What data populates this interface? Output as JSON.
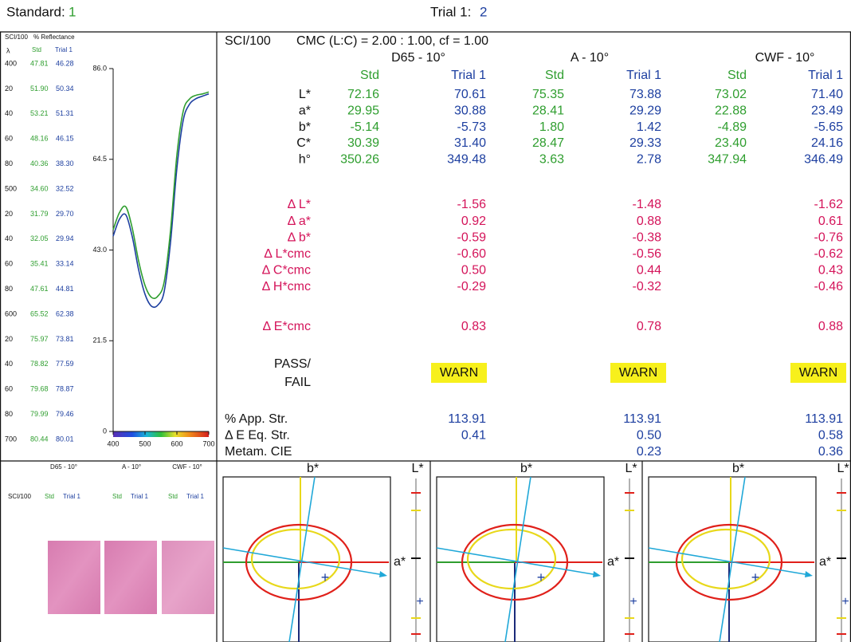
{
  "header": {
    "standard_label": "Standard:",
    "standard_value": "1",
    "trial_label": "Trial 1:",
    "trial_value": "2"
  },
  "spectral": {
    "mode": "SCI/100",
    "title": "% Reflectance",
    "col_headers": [
      "λ",
      "Std",
      "Trial 1"
    ],
    "rows": [
      {
        "wl": {
          "value": 400,
          "label": "400"
        },
        "std": "47.81",
        "trial": "46.28"
      },
      {
        "wl": {
          "value": 420,
          "label": "20"
        },
        "std": "51.90",
        "trial": "50.34"
      },
      {
        "wl": {
          "value": 440,
          "label": "40"
        },
        "std": "53.21",
        "trial": "51.31"
      },
      {
        "wl": {
          "value": 460,
          "label": "60"
        },
        "std": "48.16",
        "trial": "46.15"
      },
      {
        "wl": {
          "value": 480,
          "label": "80"
        },
        "std": "40.36",
        "trial": "38.30"
      },
      {
        "wl": {
          "value": 500,
          "label": "500"
        },
        "std": "34.60",
        "trial": "32.52"
      },
      {
        "wl": {
          "value": 520,
          "label": "20"
        },
        "std": "31.79",
        "trial": "29.70"
      },
      {
        "wl": {
          "value": 540,
          "label": "40"
        },
        "std": "32.05",
        "trial": "29.94"
      },
      {
        "wl": {
          "value": 560,
          "label": "60"
        },
        "std": "35.41",
        "trial": "33.14"
      },
      {
        "wl": {
          "value": 580,
          "label": "80"
        },
        "std": "47.61",
        "trial": "44.81"
      },
      {
        "wl": {
          "value": 600,
          "label": "600"
        },
        "std": "65.52",
        "trial": "62.38"
      },
      {
        "wl": {
          "value": 620,
          "label": "20"
        },
        "std": "75.97",
        "trial": "73.81"
      },
      {
        "wl": {
          "value": 640,
          "label": "40"
        },
        "std": "78.82",
        "trial": "77.59"
      },
      {
        "wl": {
          "value": 660,
          "label": "60"
        },
        "std": "79.68",
        "trial": "78.87"
      },
      {
        "wl": {
          "value": 680,
          "label": "80"
        },
        "std": "79.99",
        "trial": "79.46"
      },
      {
        "wl": {
          "value": 700,
          "label": "700"
        },
        "std": "80.44",
        "trial": "80.01"
      }
    ],
    "chart": {
      "xlim": [
        400,
        700
      ],
      "ylim": [
        0,
        86
      ],
      "xticks": [
        400,
        500,
        600,
        700
      ],
      "yticks": [
        {
          "value": 86,
          "label": "86.0"
        },
        {
          "value": 64.5,
          "label": "64.5"
        },
        {
          "value": 43,
          "label": "43.0"
        },
        {
          "value": 21.5,
          "label": "21.5"
        },
        0
      ],
      "std_color": "#2f9e2f",
      "trial_color": "#1d3fa0"
    }
  },
  "results": {
    "formula": "CMC (L:C) = 2.00 : 1.00, cf = 1.00",
    "illuminants": [
      "D65 - 10°",
      "A - 10°",
      "CWF - 10°"
    ],
    "col_headers": [
      "Std",
      "Trial 1"
    ],
    "rows": [
      {
        "label": "L*",
        "values": [
          "72.16",
          "70.61",
          "75.35",
          "73.88",
          "73.02",
          "71.40"
        ]
      },
      {
        "label": "a*",
        "values": [
          "29.95",
          "30.88",
          "28.41",
          "29.29",
          "22.88",
          "23.49"
        ]
      },
      {
        "label": "b*",
        "values": [
          "-5.14",
          "-5.73",
          "1.80",
          "1.42",
          "-4.89",
          "-5.65"
        ]
      },
      {
        "label": "C*",
        "values": [
          "30.39",
          "31.40",
          "28.47",
          "29.33",
          "23.40",
          "24.16"
        ]
      },
      {
        "label": "h°",
        "values": [
          "350.26",
          "349.48",
          "3.63",
          "2.78",
          "347.94",
          "346.49"
        ]
      }
    ],
    "delta_rows": [
      {
        "label": "Δ L*",
        "values": [
          "-1.56",
          "-1.48",
          "-1.62"
        ]
      },
      {
        "label": "Δ a*",
        "values": [
          "0.92",
          "0.88",
          "0.61"
        ]
      },
      {
        "label": "Δ b*",
        "values": [
          "-0.59",
          "-0.38",
          "-0.76"
        ]
      },
      {
        "label": "Δ L*cmc",
        "values": [
          "-0.60",
          "-0.56",
          "-0.62"
        ]
      },
      {
        "label": "Δ C*cmc",
        "values": [
          "0.50",
          "0.44",
          "0.43"
        ]
      },
      {
        "label": "Δ H*cmc",
        "values": [
          "-0.29",
          "-0.32",
          "-0.46"
        ]
      }
    ],
    "de_row": {
      "label": "Δ E*cmc",
      "values": [
        "0.83",
        "0.78",
        "0.88"
      ]
    },
    "pass_fail": {
      "label_lines": [
        "PASS/",
        "FAIL"
      ],
      "values": [
        "WARN",
        "WARN",
        "WARN"
      ]
    },
    "strength_rows": [
      {
        "label": "% App. Str.",
        "values": [
          "113.91",
          "113.91",
          "113.91"
        ]
      },
      {
        "label": "Δ E Eq. Str.",
        "values": [
          "0.41",
          "0.50",
          "0.58"
        ]
      },
      {
        "label": "Metam. CIE",
        "values": [
          null,
          "0.23",
          "0.36"
        ]
      }
    ]
  },
  "plots": {
    "b_label": "b*",
    "l_label": "L*",
    "a_label": "a*"
  }
}
